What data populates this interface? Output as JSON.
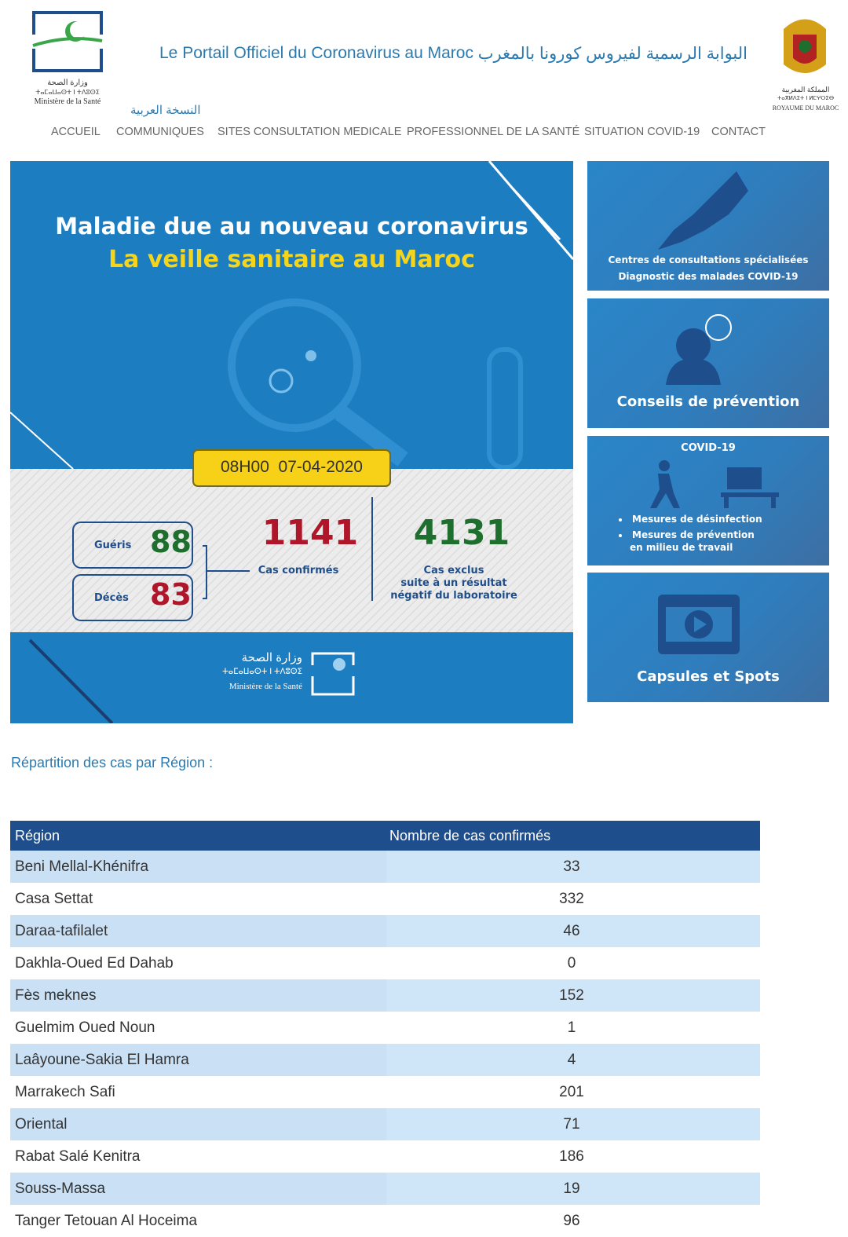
{
  "header": {
    "ministry_logo": {
      "arabic": "وزارة الصحة",
      "tifinagh": "ⵜⴰⵎⴰⵡⴰⵙⵜ ⵏ ⵜⴷⵓⵙⵉ",
      "french": "Ministère de la Santé"
    },
    "title_fr": "Le Portail Officiel du Coronavirus au Maroc",
    "title_ar": "البوابة الرسمية لفيروس كورونا بالمغرب",
    "arabic_version": "النسخة العربية",
    "kingdom_logo": {
      "arabic": "المملكة المغربية",
      "tifinagh": "ⵜⴰⴳⵍⴷⵉⵜ ⵏ ⵍⵎⵖⵔⵉⴱ",
      "french": "ROYAUME DU MAROC"
    }
  },
  "nav": [
    "ACCUEIL",
    "COMMUNIQUES",
    "SITES CONSULTATION MEDICALE",
    "PROFESSIONNEL DE LA SANTÉ",
    "SITUATION COVID-19",
    "CONTACT"
  ],
  "banner": {
    "title": "Maladie due au nouveau coronavirus",
    "subtitle": "La veille sanitaire au Maroc",
    "datetime": "08H00  07-04-2020",
    "recovered": {
      "label": "Guéris",
      "value": 88
    },
    "deaths": {
      "label": "Décès",
      "value": 83
    },
    "confirmed": {
      "value": 1141,
      "label": "Cas confirmés"
    },
    "excluded": {
      "value": 4131,
      "label": [
        "Cas exclus",
        "suite à un résultat",
        "négatif du laboratoire"
      ]
    },
    "logo": {
      "arabic": "وزارة الصحة",
      "tifinagh": "ⵜⴰⵎⴰⵡⴰⵙⵜ ⵏ ⵜⴷⵓⵙⵉ",
      "french": "Ministère de la Santé"
    }
  },
  "cards": [
    {
      "lines": [
        "Centres de consultations spécialisées",
        "Diagnostic des malades COVID-19"
      ]
    },
    {
      "lines": [
        "Conseils de prévention"
      ]
    },
    {
      "title": "COVID-19",
      "lines": [
        "Mesures de désinfection",
        "Mesures de prévention",
        "en milieu de travail"
      ]
    },
    {
      "lines": [
        "Capsules et Spots"
      ]
    }
  ],
  "section_title": "Répartition des cas par Région :",
  "table": {
    "headers": [
      "Région",
      "Nombre de cas confirmés"
    ],
    "rows": [
      [
        "Beni Mellal-Khénifra",
        33
      ],
      [
        "Casa Settat",
        332
      ],
      [
        "Daraa-tafilalet",
        46
      ],
      [
        "Dakhla-Oued Ed Dahab",
        0
      ],
      [
        "Fès meknes",
        152
      ],
      [
        "Guelmim Oued Noun",
        1
      ],
      [
        "Laâyoune-Sakia El Hamra",
        4
      ],
      [
        "Marrakech Safi",
        201
      ],
      [
        "Oriental",
        71
      ],
      [
        "Rabat Salé Kenitra",
        186
      ],
      [
        "Souss-Massa",
        19
      ],
      [
        "Tanger Tetouan Al Hoceima",
        96
      ]
    ]
  }
}
